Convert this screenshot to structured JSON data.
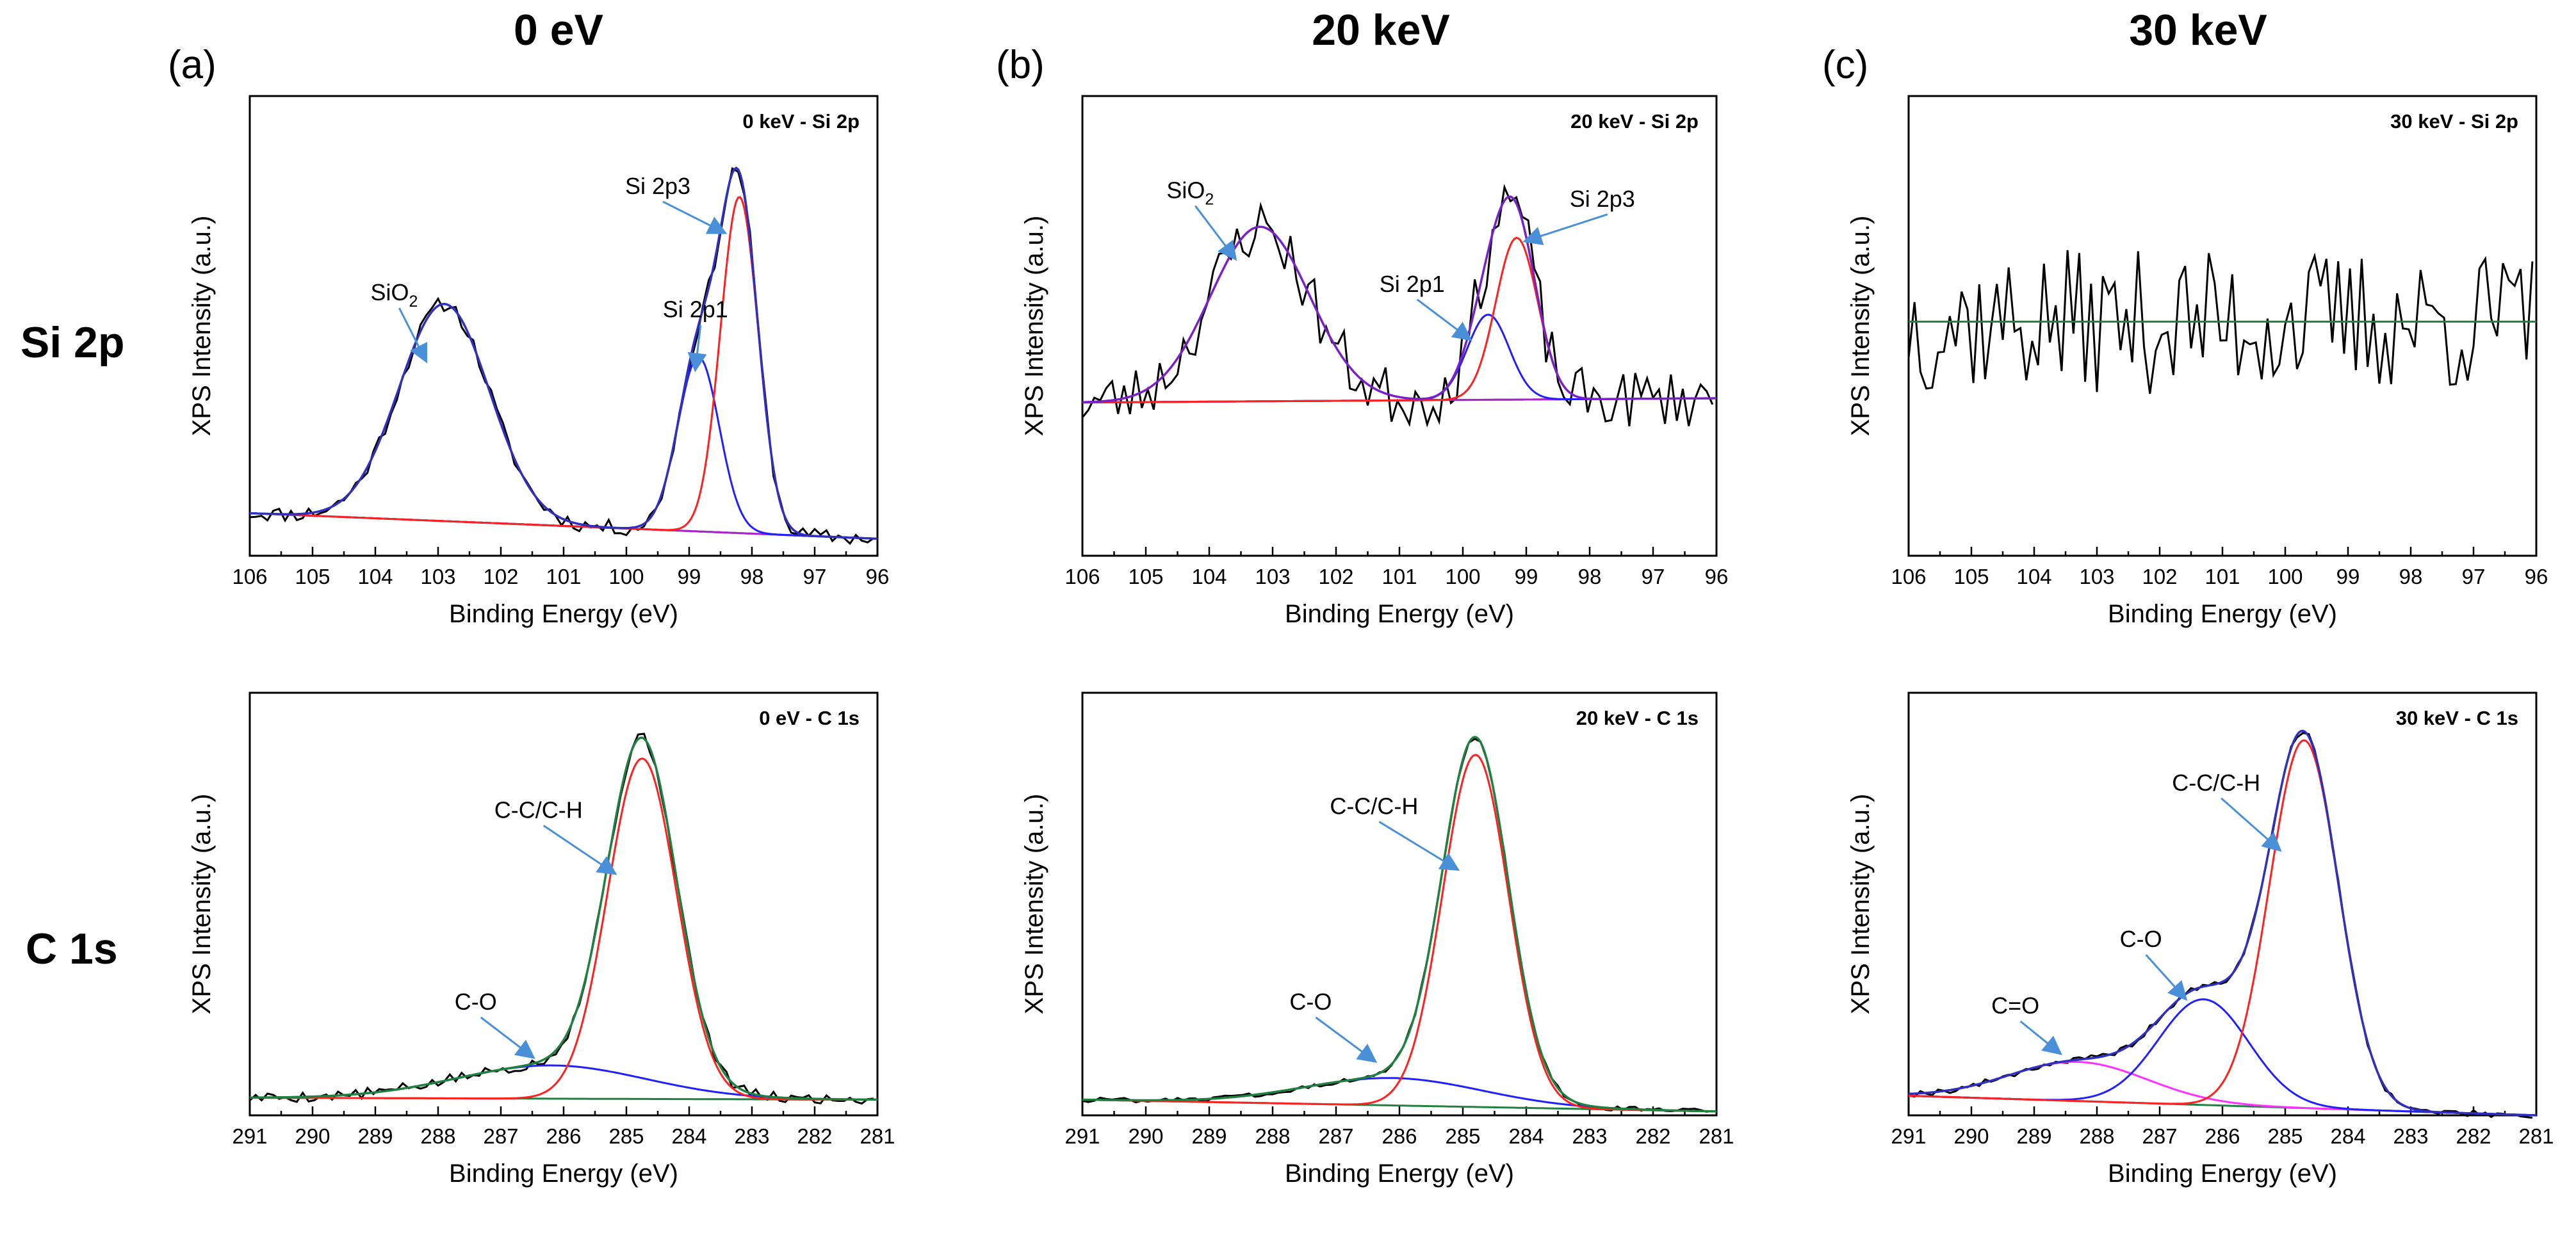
{
  "figure": {
    "column_titles": [
      "0 eV",
      "20 keV",
      "30 keV"
    ],
    "row_titles": [
      "Si 2p",
      "C 1s"
    ],
    "panel_letters": [
      "(a)",
      "(b)",
      "(c)"
    ]
  },
  "colors": {
    "raw": "#000000",
    "envelope_a": "#3030c0",
    "envelope_b": "#7a20c8",
    "si2p3": "#ff2020",
    "si2p1": "#2020ff",
    "sio2": "#b020d0",
    "cc": "#ff2020",
    "co": "#2020ff",
    "c_eq_o": "#ff30ff",
    "baseline": "#208040",
    "arrow": "#4a90d8"
  },
  "chart_data": [
    {
      "id": "si_0",
      "type": "line",
      "title": "0 keV - Si 2p",
      "xlabel": "Binding Energy (eV)",
      "ylabel": "XPS Intensity (a.u.)",
      "xlim": [
        106,
        96
      ],
      "ylim": [
        0,
        1.08
      ],
      "xticks": [
        106,
        105,
        104,
        103,
        102,
        101,
        100,
        99,
        98,
        97,
        96
      ],
      "xtick_labels": [
        "106",
        "105",
        "104",
        "103",
        "102",
        "101",
        "100",
        "99",
        "98",
        "97",
        "96"
      ],
      "noise": 0.018,
      "seed": 11,
      "baseline": [
        [
          106,
          0.1
        ],
        [
          96,
          0.04
        ]
      ],
      "components": [
        {
          "name": "SiO2",
          "center": 102.9,
          "height": 0.51,
          "sigma": 0.72,
          "color": "#b020d0"
        },
        {
          "name": "Si 2p1",
          "center": 98.85,
          "height": 0.41,
          "sigma": 0.33,
          "color": "#2020ff"
        },
        {
          "name": "Si 2p3",
          "center": 98.2,
          "height": 0.79,
          "sigma": 0.3,
          "color": "#ff2020"
        }
      ],
      "envelope_color": "#3030c0",
      "annotations": [
        {
          "text": "SiO",
          "sub": "2",
          "x": 103.7,
          "y": 0.6,
          "ax": 103.2,
          "ay": 0.46
        },
        {
          "text": "Si 2p1",
          "x": 98.9,
          "y": 0.56,
          "ax": 98.9,
          "ay": 0.44
        },
        {
          "text": "Si 2p3",
          "x": 99.5,
          "y": 0.85,
          "ax": 98.45,
          "ay": 0.76
        }
      ]
    },
    {
      "id": "si_20",
      "type": "line",
      "title": "20 keV - Si 2p",
      "xlabel": "Binding Energy (eV)",
      "ylabel": "XPS Intensity (a.u.)",
      "xlim": [
        106,
        96
      ],
      "ylim": [
        0,
        1.08
      ],
      "xticks": [
        106,
        105,
        104,
        103,
        102,
        101,
        100,
        99,
        98,
        97,
        96
      ],
      "xtick_labels": [
        "106",
        "105",
        "104",
        "103",
        "102",
        "101",
        "100",
        "99",
        "98",
        "97",
        "96"
      ],
      "noise": 0.07,
      "seed": 23,
      "baseline": [
        [
          106,
          0.36
        ],
        [
          96,
          0.37
        ]
      ],
      "components": [
        {
          "name": "SiO2",
          "center": 103.2,
          "height": 0.41,
          "sigma": 0.78,
          "color": "#b020d0"
        },
        {
          "name": "Si 2p1",
          "center": 99.6,
          "height": 0.2,
          "sigma": 0.33,
          "color": "#2020ff"
        },
        {
          "name": "Si 2p3",
          "center": 99.15,
          "height": 0.38,
          "sigma": 0.33,
          "color": "#ff2020"
        }
      ],
      "envelope_color": "#7a20c8",
      "annotations": [
        {
          "text": "SiO",
          "sub": "2",
          "x": 104.3,
          "y": 0.84,
          "ax": 103.6,
          "ay": 0.7
        },
        {
          "text": "Si 2p1",
          "x": 100.8,
          "y": 0.62,
          "ax": 99.9,
          "ay": 0.51
        },
        {
          "text": "Si 2p3",
          "x": 97.8,
          "y": 0.82,
          "ax": 99.0,
          "ay": 0.74
        }
      ]
    },
    {
      "id": "si_30",
      "type": "line",
      "title": "30 keV - Si 2p",
      "xlabel": "Binding Energy (eV)",
      "ylabel": "XPS Intensity (a.u.)",
      "xlim": [
        106,
        96
      ],
      "ylim": [
        0,
        1.08
      ],
      "xticks": [
        106,
        105,
        104,
        103,
        102,
        101,
        100,
        99,
        98,
        97,
        96
      ],
      "xtick_labels": [
        "106",
        "105",
        "104",
        "103",
        "102",
        "101",
        "100",
        "99",
        "98",
        "97",
        "96"
      ],
      "noise": 0.17,
      "seed": 37,
      "baseline": [
        [
          106,
          0.55
        ],
        [
          96,
          0.55
        ]
      ],
      "components": [],
      "envelope_color": null,
      "annotations": []
    },
    {
      "id": "c_0",
      "type": "line",
      "title": "0 eV - C 1s",
      "xlabel": "Binding Energy (eV)",
      "ylabel": "XPS Intensity (a.u.)",
      "xlim": [
        291,
        281
      ],
      "ylim": [
        0,
        1.08
      ],
      "xticks": [
        291,
        290,
        289,
        288,
        287,
        286,
        285,
        284,
        283,
        282,
        281
      ],
      "xtick_labels": [
        "291",
        "290",
        "289",
        "288",
        "287",
        "286",
        "285",
        "284",
        "283",
        "282",
        "281"
      ],
      "noise": 0.014,
      "seed": 5,
      "baseline": [
        [
          291,
          0.045
        ],
        [
          281,
          0.04
        ]
      ],
      "components": [
        {
          "name": "C-O",
          "center": 286.2,
          "height": 0.085,
          "sigma": 1.5,
          "color": "#2020ff"
        },
        {
          "name": "C-C/C-H",
          "center": 284.75,
          "height": 0.87,
          "sigma": 0.55,
          "color": "#ff2020"
        }
      ],
      "envelope_color": "#208040",
      "annotations": [
        {
          "text": "C-C/C-H",
          "x": 286.4,
          "y": 0.76,
          "ax": 285.2,
          "ay": 0.62
        },
        {
          "text": "C-O",
          "x": 287.4,
          "y": 0.27,
          "ax": 286.5,
          "ay": 0.15
        }
      ]
    },
    {
      "id": "c_20",
      "type": "line",
      "title": "20 keV - C 1s",
      "xlabel": "Binding Energy (eV)",
      "ylabel": "XPS Intensity (a.u.)",
      "xlim": [
        291,
        281
      ],
      "ylim": [
        0,
        1.08
      ],
      "xticks": [
        291,
        290,
        289,
        288,
        287,
        286,
        285,
        284,
        283,
        282,
        281
      ],
      "xtick_labels": [
        "291",
        "290",
        "289",
        "288",
        "287",
        "286",
        "285",
        "284",
        "283",
        "282",
        "281"
      ],
      "noise": 0.006,
      "seed": 8,
      "baseline": [
        [
          291,
          0.04
        ],
        [
          281,
          0.01
        ]
      ],
      "components": [
        {
          "name": "C-O",
          "center": 286.1,
          "height": 0.07,
          "sigma": 1.4,
          "color": "#2020ff"
        },
        {
          "name": "C-C/C-H",
          "center": 284.8,
          "height": 0.9,
          "sigma": 0.52,
          "color": "#ff2020"
        }
      ],
      "envelope_color": "#208040",
      "annotations": [
        {
          "text": "C-C/C-H",
          "x": 286.4,
          "y": 0.77,
          "ax": 285.1,
          "ay": 0.63
        },
        {
          "text": "C-O",
          "x": 287.4,
          "y": 0.27,
          "ax": 286.4,
          "ay": 0.14
        }
      ]
    },
    {
      "id": "c_30",
      "type": "line",
      "title": "30 keV - C 1s",
      "xlabel": "Binding Energy (eV)",
      "ylabel": "XPS Intensity (a.u.)",
      "xlim": [
        291,
        281
      ],
      "ylim": [
        0,
        1.08
      ],
      "xticks": [
        291,
        290,
        289,
        288,
        287,
        286,
        285,
        284,
        283,
        282,
        281
      ],
      "xtick_labels": [
        "291",
        "290",
        "289",
        "288",
        "287",
        "286",
        "285",
        "284",
        "283",
        "282",
        "281"
      ],
      "noise": 0.008,
      "seed": 19,
      "baseline": [
        [
          291,
          0.05
        ],
        [
          281,
          0.0
        ]
      ],
      "components": [
        {
          "name": "C=O",
          "center": 288.3,
          "height": 0.1,
          "sigma": 1.1,
          "color": "#ff30ff"
        },
        {
          "name": "C-O",
          "center": 286.3,
          "height": 0.27,
          "sigma": 0.72,
          "color": "#2020ff"
        },
        {
          "name": "C-C/C-H",
          "center": 284.7,
          "height": 0.94,
          "sigma": 0.55,
          "color": "#ff2020"
        }
      ],
      "envelope_color": "#3030c0",
      "annotations": [
        {
          "text": "C-C/C-H",
          "x": 286.1,
          "y": 0.83,
          "ax": 285.1,
          "ay": 0.68
        },
        {
          "text": "C-O",
          "x": 287.3,
          "y": 0.43,
          "ax": 286.6,
          "ay": 0.3
        },
        {
          "text": "C=O",
          "x": 289.3,
          "y": 0.26,
          "ax": 288.6,
          "ay": 0.16
        }
      ]
    }
  ]
}
